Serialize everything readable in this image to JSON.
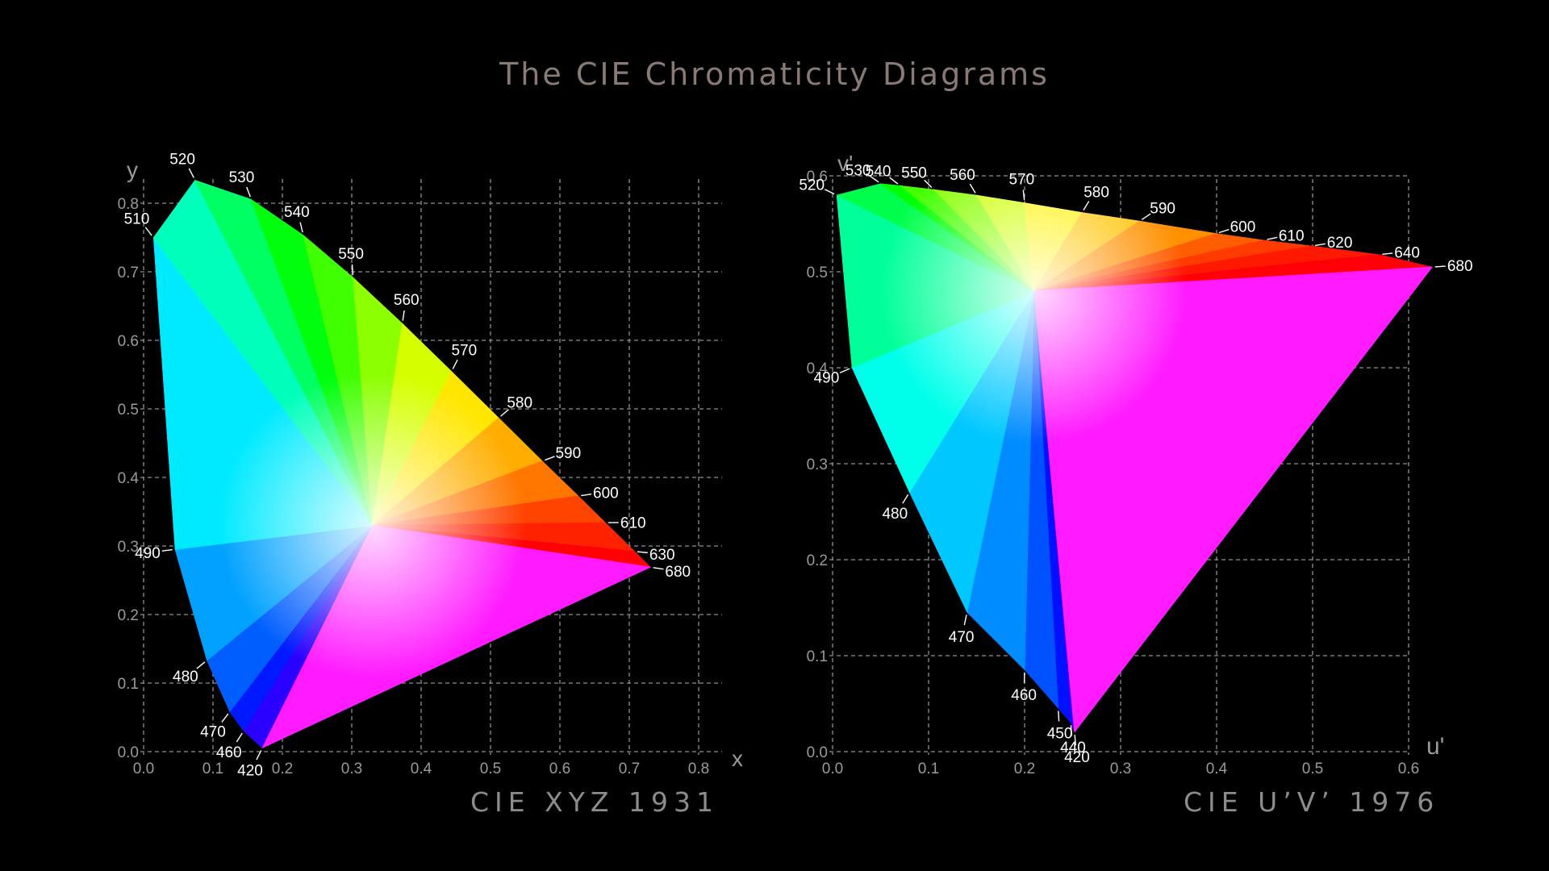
{
  "title": "The CIE Chromaticity Diagrams",
  "chart_data": [
    {
      "type": "scatter",
      "name": "CIE XYZ 1931",
      "caption": "CIE XYZ 1931",
      "xlabel": "x",
      "ylabel": "y",
      "xlim": [
        0,
        0.8
      ],
      "ylim": [
        0,
        0.8
      ],
      "xticks": [
        "0.0",
        "0.1",
        "0.2",
        "0.3",
        "0.4",
        "0.5",
        "0.6",
        "0.7",
        "0.8"
      ],
      "yticks": [
        "0.0",
        "0.1",
        "0.2",
        "0.3",
        "0.4",
        "0.5",
        "0.6",
        "0.7",
        "0.8"
      ],
      "grid": true,
      "white_point": [
        0.33,
        0.33
      ],
      "locus": [
        {
          "label": "420",
          "x": 0.171,
          "y": 0.005
        },
        {
          "label": "460",
          "x": 0.144,
          "y": 0.03
        },
        {
          "label": "470",
          "x": 0.124,
          "y": 0.058
        },
        {
          "label": "480",
          "x": 0.091,
          "y": 0.133
        },
        {
          "label": "490",
          "x": 0.045,
          "y": 0.295
        },
        {
          "label": "510",
          "x": 0.014,
          "y": 0.75
        },
        {
          "label": "520",
          "x": 0.074,
          "y": 0.834
        },
        {
          "label": "530",
          "x": 0.155,
          "y": 0.806
        },
        {
          "label": "540",
          "x": 0.23,
          "y": 0.754
        },
        {
          "label": "550",
          "x": 0.302,
          "y": 0.692
        },
        {
          "label": "560",
          "x": 0.373,
          "y": 0.625
        },
        {
          "label": "570",
          "x": 0.444,
          "y": 0.555
        },
        {
          "label": "580",
          "x": 0.512,
          "y": 0.487
        },
        {
          "label": "590",
          "x": 0.575,
          "y": 0.424
        },
        {
          "label": "600",
          "x": 0.627,
          "y": 0.373
        },
        {
          "label": "610",
          "x": 0.666,
          "y": 0.334
        },
        {
          "label": "630",
          "x": 0.708,
          "y": 0.292
        },
        {
          "label": "680",
          "x": 0.731,
          "y": 0.269
        }
      ]
    },
    {
      "type": "scatter",
      "name": "CIE U'V' 1976",
      "caption": "CIE U’V’ 1976",
      "xlabel": "u'",
      "ylabel": "v'",
      "xlim": [
        0,
        0.6
      ],
      "ylim": [
        0,
        0.6
      ],
      "xticks": [
        "0.0",
        "0.1",
        "0.2",
        "0.3",
        "0.4",
        "0.5",
        "0.6"
      ],
      "yticks": [
        "0.0",
        "0.1",
        "0.2",
        "0.3",
        "0.4",
        "0.5",
        "0.6"
      ],
      "grid": true,
      "white_point": [
        0.21,
        0.48
      ],
      "locus": [
        {
          "label": "420",
          "x": 0.252,
          "y": 0.02
        },
        {
          "label": "440",
          "x": 0.248,
          "y": 0.03
        },
        {
          "label": "450",
          "x": 0.235,
          "y": 0.045
        },
        {
          "label": "460",
          "x": 0.2,
          "y": 0.085
        },
        {
          "label": "470",
          "x": 0.14,
          "y": 0.145
        },
        {
          "label": "480",
          "x": 0.08,
          "y": 0.27
        },
        {
          "label": "490",
          "x": 0.02,
          "y": 0.4
        },
        {
          "label": "520",
          "x": 0.004,
          "y": 0.58
        },
        {
          "label": "530",
          "x": 0.05,
          "y": 0.592
        },
        {
          "label": "540",
          "x": 0.07,
          "y": 0.59
        },
        {
          "label": "550",
          "x": 0.105,
          "y": 0.586
        },
        {
          "label": "560",
          "x": 0.15,
          "y": 0.58
        },
        {
          "label": "570",
          "x": 0.2,
          "y": 0.572
        },
        {
          "label": "580",
          "x": 0.26,
          "y": 0.562
        },
        {
          "label": "590",
          "x": 0.32,
          "y": 0.553
        },
        {
          "label": "600",
          "x": 0.4,
          "y": 0.54
        },
        {
          "label": "610",
          "x": 0.45,
          "y": 0.533
        },
        {
          "label": "620",
          "x": 0.5,
          "y": 0.527
        },
        {
          "label": "640",
          "x": 0.57,
          "y": 0.518
        },
        {
          "label": "680",
          "x": 0.625,
          "y": 0.505
        }
      ]
    }
  ]
}
